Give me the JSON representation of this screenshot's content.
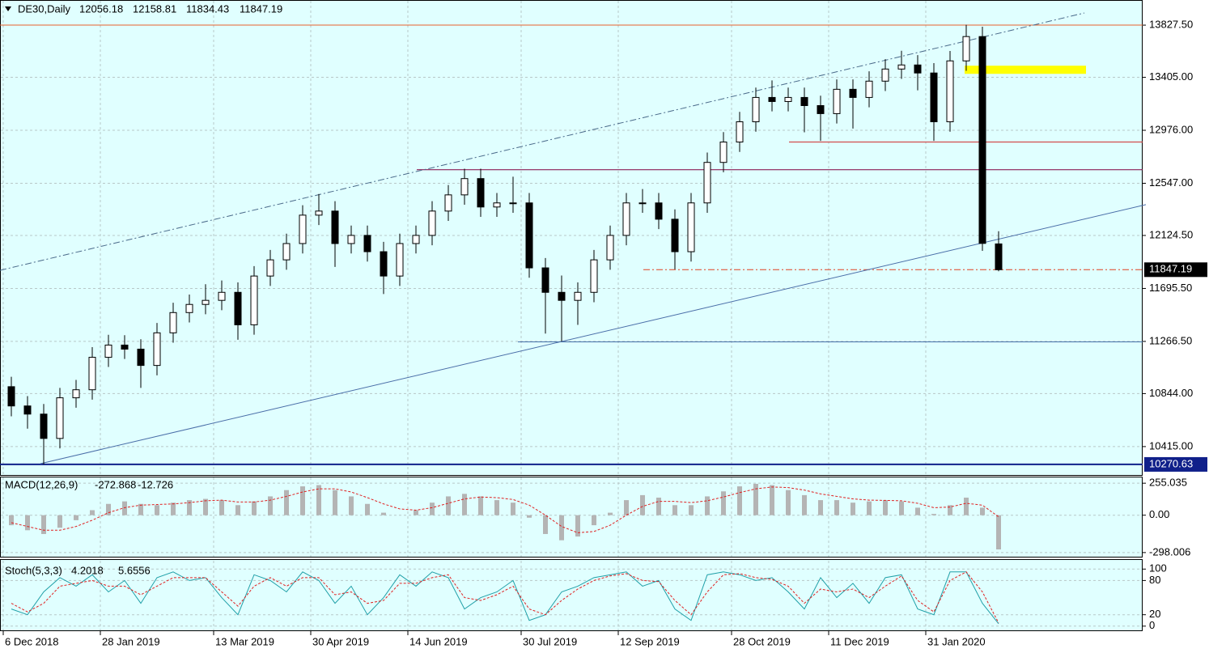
{
  "chart_data": [
    {
      "type": "candlestick",
      "symbol": "DE30,Daily",
      "categories": [
        "6 Dec 2018",
        null,
        null,
        null,
        null,
        null,
        "28 Jan 2019",
        null,
        null,
        null,
        null,
        null,
        null,
        "13 Mar 2019",
        null,
        null,
        null,
        null,
        null,
        "30 Apr 2019",
        null,
        null,
        null,
        null,
        null,
        "14 Jun 2019",
        null,
        null,
        null,
        null,
        null,
        null,
        "30 Jul 2019",
        null,
        null,
        null,
        null,
        null,
        "12 Sep 2019",
        null,
        null,
        null,
        null,
        null,
        null,
        "28 Oct 2019",
        null,
        null,
        null,
        null,
        null,
        "11 Dec 2019",
        null,
        null,
        null,
        null,
        null,
        "31 Jan 2020",
        null,
        null,
        null,
        null
      ],
      "open": [
        10900,
        10744,
        10678,
        10481,
        10810,
        10875,
        11138,
        11237,
        11204,
        11072,
        11336,
        11500,
        11566,
        11599,
        11664,
        11401,
        11796,
        11927,
        12059,
        12289,
        12322,
        12059,
        12125,
        11993,
        11796,
        12059,
        12125,
        12322,
        12453,
        12585,
        12355,
        12388,
        12388,
        11862,
        11664,
        11599,
        11664,
        11927,
        12125,
        12388,
        12388,
        12256,
        11993,
        12388,
        12716,
        12881,
        13045,
        13242,
        13209,
        13242,
        13176,
        13111,
        13308,
        13242,
        13374,
        13472,
        13505,
        13440,
        13045,
        13538,
        13735,
        12056.18
      ],
      "high": [
        10980,
        10824,
        10760,
        10890,
        10955,
        11220,
        11320,
        11317,
        11284,
        11416,
        11580,
        11646,
        11730,
        11760,
        11744,
        11876,
        12007,
        12139,
        12369,
        12460,
        12402,
        12205,
        12205,
        12073,
        12139,
        12205,
        12402,
        12533,
        12665,
        12665,
        12468,
        12600,
        12468,
        11942,
        11800,
        11744,
        12007,
        12205,
        12468,
        12500,
        12468,
        12336,
        12468,
        12796,
        12961,
        13125,
        13322,
        13380,
        13322,
        13322,
        13256,
        13388,
        13388,
        13454,
        13552,
        13620,
        13585,
        13520,
        13618,
        13830,
        13815,
        12158.81
      ],
      "low": [
        10660,
        10560,
        10270.63,
        10400,
        10730,
        10795,
        11060,
        11124,
        10890,
        10992,
        11256,
        11420,
        11486,
        11519,
        11280,
        11321,
        11716,
        11847,
        11979,
        12209,
        11870,
        11979,
        11913,
        11650,
        11716,
        11979,
        12045,
        12242,
        12373,
        12275,
        12275,
        12308,
        11782,
        11330,
        11266.5,
        11400,
        11584,
        11847,
        12045,
        12308,
        12176,
        11850,
        11913,
        12308,
        12636,
        12801,
        12965,
        13129,
        13129,
        12960,
        12890,
        13031,
        12990,
        13162,
        13294,
        13392,
        13300,
        12890,
        12965,
        13458,
        12000,
        11834.43
      ],
      "close": [
        10744,
        10678,
        10481,
        10810,
        10875,
        11138,
        11237,
        11204,
        11072,
        11336,
        11500,
        11566,
        11599,
        11664,
        11401,
        11796,
        11927,
        12059,
        12289,
        12322,
        12059,
        12125,
        11993,
        11796,
        12059,
        12125,
        12322,
        12453,
        12585,
        12355,
        12388,
        12388,
        11862,
        11664,
        11599,
        11664,
        11927,
        12125,
        12388,
        12388,
        12256,
        11993,
        12388,
        12716,
        12881,
        13045,
        13242,
        13209,
        13242,
        13176,
        13111,
        13308,
        13242,
        13374,
        13472,
        13505,
        13440,
        13045,
        13538,
        13735,
        12060,
        11847.19
      ],
      "up_color": "#ffffff",
      "down_color": "#000000",
      "ylim": [
        10185,
        14031
      ],
      "yticks": [
        {
          "value": 13827.5,
          "label": "13827.50"
        },
        {
          "value": 13405,
          "label": "13405.00"
        },
        {
          "value": 12976,
          "label": "12976.00"
        },
        {
          "value": 12547,
          "label": "12547.00"
        },
        {
          "value": 12124.5,
          "label": "12124.50"
        },
        {
          "value": 11695.5,
          "label": "11695.50"
        },
        {
          "value": 11266.5,
          "label": "11266.50"
        },
        {
          "value": 10844,
          "label": "10844.00"
        },
        {
          "value": 10415,
          "label": "10415.00"
        }
      ],
      "grid": true,
      "levels": [
        {
          "value": 13827.5,
          "from": -0.7,
          "color": "#e8602c"
        },
        {
          "value": 12881,
          "from": 48.05,
          "color": "#d03030"
        },
        {
          "value": 12657,
          "from": 25.05,
          "color": "#800040"
        },
        {
          "value": 11847.19,
          "from": 39.05,
          "color": "#e04020",
          "dash": true
        },
        {
          "value": 11263,
          "from": 31.3,
          "color": "#4670a8"
        },
        {
          "value": 10270.63,
          "from": -0.7,
          "color": "#10208a",
          "width": 2
        }
      ],
      "trendlines": [
        {
          "x": [
            1.8,
            70.1
          ],
          "y": [
            10277,
            12374
          ],
          "color": "#4a6ea8"
        },
        {
          "x": [
            -0.7,
            66.3
          ],
          "y": [
            11842,
            13926
          ],
          "color": "#4a6a8a",
          "dash": true
        }
      ],
      "zones": [
        {
          "x": [
            58.9,
            66.4
          ],
          "y": [
            13499,
            13433
          ],
          "color": "#ffff00"
        }
      ]
    },
    {
      "type": "macd",
      "name": "MACD(12,26,9)",
      "histogram": [
        -80,
        -120,
        -150,
        -100,
        -40,
        40,
        90,
        110,
        90,
        80,
        100,
        120,
        130,
        120,
        80,
        110,
        150,
        200,
        230,
        240,
        200,
        150,
        90,
        20,
        0,
        40,
        100,
        150,
        170,
        150,
        120,
        100,
        -20,
        -150,
        -200,
        -170,
        -80,
        20,
        120,
        160,
        140,
        80,
        80,
        150,
        190,
        230,
        250,
        240,
        200,
        160,
        120,
        120,
        100,
        110,
        120,
        110,
        60,
        10,
        80,
        140,
        60,
        -272.868
      ],
      "signal": [
        -60,
        -90,
        -120,
        -120,
        -90,
        -40,
        20,
        60,
        80,
        85,
        90,
        100,
        115,
        120,
        105,
        105,
        120,
        150,
        185,
        210,
        210,
        185,
        140,
        90,
        50,
        40,
        60,
        95,
        130,
        145,
        140,
        125,
        80,
        0,
        -90,
        -140,
        -130,
        -80,
        0,
        70,
        110,
        110,
        100,
        115,
        145,
        180,
        210,
        225,
        220,
        200,
        170,
        150,
        130,
        120,
        118,
        115,
        95,
        60,
        65,
        95,
        80,
        -12.726
      ],
      "hist_color": "#b4b4b4",
      "signal_color": "#e02020",
      "ylim": [
        -337.5,
        307.7
      ],
      "yticks": [
        255.035,
        {
          "value": 0,
          "label": "0.00"
        },
        -298.006
      ]
    },
    {
      "type": "stoch",
      "name": "Stoch(5,3,3)",
      "k": [
        30,
        20,
        60,
        85,
        70,
        90,
        60,
        80,
        40,
        85,
        95,
        80,
        85,
        50,
        20,
        90,
        80,
        60,
        95,
        80,
        40,
        70,
        20,
        50,
        90,
        70,
        95,
        85,
        30,
        50,
        60,
        80,
        10,
        20,
        60,
        70,
        85,
        90,
        95,
        70,
        80,
        30,
        10,
        90,
        95,
        90,
        80,
        85,
        60,
        30,
        85,
        50,
        75,
        40,
        85,
        90,
        30,
        20,
        95,
        95,
        40,
        4.2018
      ],
      "d": [
        40,
        25,
        40,
        70,
        75,
        80,
        70,
        70,
        55,
        70,
        85,
        85,
        85,
        60,
        35,
        70,
        85,
        70,
        85,
        85,
        55,
        60,
        40,
        45,
        75,
        75,
        85,
        90,
        50,
        45,
        55,
        70,
        30,
        20,
        45,
        65,
        80,
        88,
        92,
        80,
        78,
        45,
        20,
        60,
        90,
        92,
        85,
        82,
        70,
        40,
        65,
        60,
        65,
        50,
        70,
        88,
        45,
        25,
        80,
        95,
        60,
        5.6556
      ],
      "k_color": "#20a0a8",
      "d_color": "#e02020",
      "ylim": [
        -8.8,
        116
      ],
      "yticks": [
        100,
        80,
        20,
        0
      ]
    }
  ]
}
